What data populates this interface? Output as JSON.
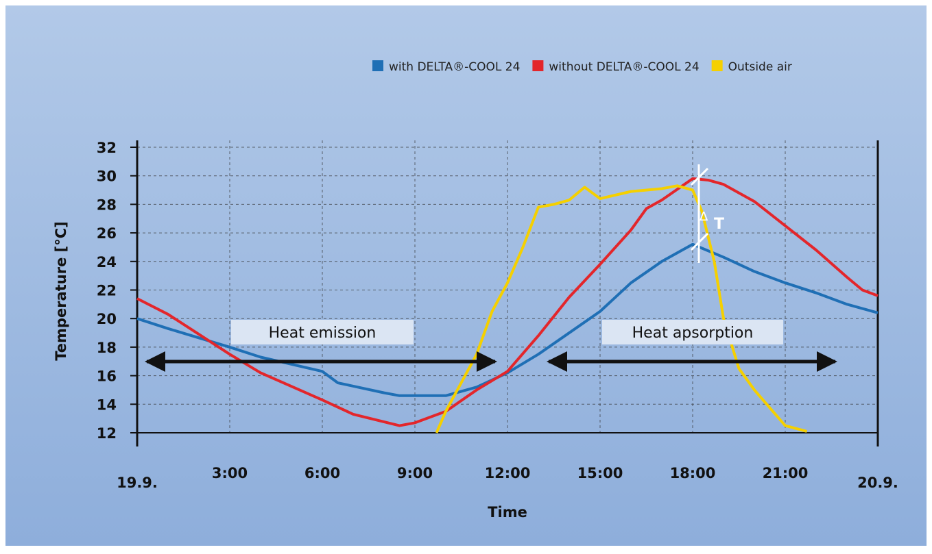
{
  "chart_data": {
    "type": "line",
    "axis_label_y": "Temperature [°C]",
    "axis_label_x": "Time",
    "annotations": [
      "Heat emission",
      "Heat apsorption",
      "Δ",
      "T"
    ],
    "xlim": [
      0,
      24
    ],
    "xticks": [
      {
        "value": 0,
        "label": "19.9."
      },
      {
        "value": 3,
        "label": "3:00"
      },
      {
        "value": 6,
        "label": "6:00"
      },
      {
        "value": 9,
        "label": "9:00"
      },
      {
        "value": 12,
        "label": "12:00"
      },
      {
        "value": 15,
        "label": "15:00"
      },
      {
        "value": 18,
        "label": "18:00"
      },
      {
        "value": 21,
        "label": "21:00"
      },
      {
        "value": 24,
        "label": "20.9."
      }
    ],
    "ylim": [
      12,
      32
    ],
    "yticks": [
      12,
      14,
      16,
      18,
      20,
      22,
      24,
      26,
      28,
      30,
      32
    ],
    "grid": true,
    "series": [
      {
        "name": "with DELTA®-COOL 24",
        "color": "#1f6fb5",
        "x": [
          0,
          1,
          3,
          4,
          6,
          6.5,
          8,
          8.5,
          10,
          11,
          12,
          13,
          14,
          15,
          16,
          17,
          18,
          19,
          20,
          21,
          22,
          23,
          24
        ],
        "values": [
          20,
          19.3,
          18,
          17.3,
          16.3,
          15.5,
          14.8,
          14.6,
          14.6,
          15.2,
          16.2,
          17.5,
          19,
          20.5,
          22.5,
          24,
          25.2,
          24.3,
          23.3,
          22.5,
          21.8,
          21,
          20.4
        ]
      },
      {
        "name": "without DELTA®-COOL 24",
        "color": "#e3262b",
        "x": [
          0,
          1,
          3,
          4,
          6,
          7,
          8.5,
          9,
          10,
          11,
          12,
          13,
          14,
          15,
          16,
          16.5,
          17,
          18,
          18.5,
          19,
          20,
          21,
          22,
          23,
          23.5,
          24
        ],
        "values": [
          21.4,
          20.3,
          17.5,
          16.2,
          14.3,
          13.3,
          12.5,
          12.7,
          13.5,
          15,
          16.3,
          18.8,
          21.5,
          23.8,
          26.2,
          27.7,
          28.3,
          29.8,
          29.7,
          29.4,
          28.2,
          26.5,
          24.8,
          22.9,
          22,
          21.6
        ]
      },
      {
        "name": "Outside air",
        "color": "#f5d000",
        "x": [
          9.7,
          10,
          11,
          11.5,
          12,
          12.5,
          13,
          13.5,
          14,
          14.5,
          15,
          16,
          17,
          17.5,
          18,
          18.3,
          18.7,
          19,
          19.5,
          20,
          21,
          21.7
        ],
        "values": [
          12,
          13.5,
          17.5,
          20.5,
          22.5,
          25,
          27.8,
          28,
          28.3,
          29.2,
          28.4,
          28.9,
          29.1,
          29.3,
          29,
          27.5,
          24,
          20,
          16.5,
          15,
          12.5,
          12.1
        ]
      }
    ]
  }
}
